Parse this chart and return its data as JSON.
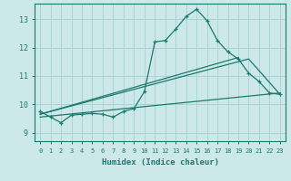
{
  "xlabel": "Humidex (Indice chaleur)",
  "bg_color": "#cce8e8",
  "line_color": "#1a7a6e",
  "grid_color": "#aad4d4",
  "xlim": [
    -0.5,
    23.5
  ],
  "ylim": [
    8.7,
    13.55
  ],
  "xticks": [
    0,
    1,
    2,
    3,
    4,
    5,
    6,
    7,
    8,
    9,
    10,
    11,
    12,
    13,
    14,
    15,
    16,
    17,
    18,
    19,
    20,
    21,
    22,
    23
  ],
  "yticks": [
    9,
    10,
    11,
    12,
    13
  ],
  "main_curve": {
    "x": [
      0,
      1,
      2,
      3,
      4,
      5,
      6,
      7,
      8,
      9,
      10,
      11,
      12,
      13,
      14,
      15,
      16,
      17,
      18,
      19,
      20,
      21,
      22,
      23
    ],
    "y": [
      9.75,
      9.55,
      9.35,
      9.62,
      9.65,
      9.68,
      9.65,
      9.55,
      9.75,
      9.85,
      10.45,
      12.2,
      12.25,
      12.65,
      13.1,
      13.35,
      12.95,
      12.25,
      11.85,
      11.6,
      11.1,
      10.8,
      10.4,
      10.35
    ]
  },
  "line_steep": {
    "x": [
      0,
      19
    ],
    "y": [
      9.65,
      11.65
    ]
  },
  "line_flat": {
    "x": [
      0,
      23
    ],
    "y": [
      9.55,
      10.4
    ]
  },
  "line_mid": {
    "x": [
      0,
      20,
      23
    ],
    "y": [
      9.65,
      11.6,
      10.35
    ]
  }
}
